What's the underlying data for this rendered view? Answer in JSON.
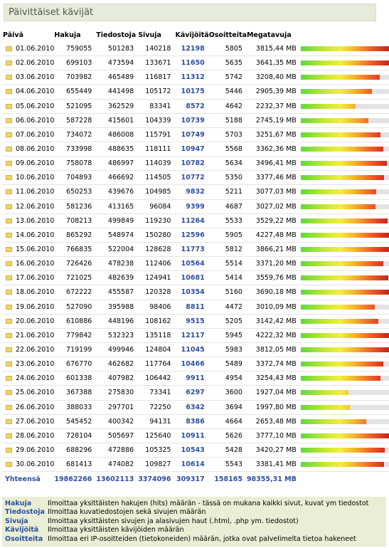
{
  "title": "Päivittäiset kävijät",
  "headers": {
    "date": "Päivä",
    "hits": "Hakuja",
    "files": "Tiedostoja",
    "pages": "Sivuja",
    "visits": "Kävijöitä",
    "ips": "Osoitteita",
    "mb": "Megatavuja"
  },
  "rows": [
    {
      "date": "01.06.2010",
      "hits": "759055",
      "files": "501283",
      "pages": "140218",
      "visits": "12198",
      "ips": "5805",
      "mb": "3815,44 MB",
      "mbv": 3815.44
    },
    {
      "date": "02.06.2010",
      "hits": "699103",
      "files": "473594",
      "pages": "133671",
      "visits": "11650",
      "ips": "5635",
      "mb": "3641,35 MB",
      "mbv": 3641.35
    },
    {
      "date": "03.06.2010",
      "hits": "703982",
      "files": "465489",
      "pages": "116817",
      "visits": "11312",
      "ips": "5742",
      "mb": "3208,40 MB",
      "mbv": 3208.4
    },
    {
      "date": "04.06.2010",
      "hits": "655449",
      "files": "441498",
      "pages": "105172",
      "visits": "10175",
      "ips": "5446",
      "mb": "2905,39 MB",
      "mbv": 2905.39
    },
    {
      "date": "05.06.2010",
      "hits": "521095",
      "files": "362529",
      "pages": "83341",
      "visits": "8572",
      "ips": "4642",
      "mb": "2232,37 MB",
      "mbv": 2232.37
    },
    {
      "date": "06.06.2010",
      "hits": "587228",
      "files": "415601",
      "pages": "104339",
      "visits": "10739",
      "ips": "5188",
      "mb": "2745,19 MB",
      "mbv": 2745.19
    },
    {
      "date": "07.06.2010",
      "hits": "734072",
      "files": "486008",
      "pages": "115791",
      "visits": "10749",
      "ips": "5703",
      "mb": "3251,67 MB",
      "mbv": 3251.67
    },
    {
      "date": "08.06.2010",
      "hits": "733998",
      "files": "488635",
      "pages": "118111",
      "visits": "10947",
      "ips": "5568",
      "mb": "3362,36 MB",
      "mbv": 3362.36
    },
    {
      "date": "09.06.2010",
      "hits": "758078",
      "files": "486997",
      "pages": "114039",
      "visits": "10782",
      "ips": "5634",
      "mb": "3496,41 MB",
      "mbv": 3496.41
    },
    {
      "date": "10.06.2010",
      "hits": "704893",
      "files": "466692",
      "pages": "114505",
      "visits": "10772",
      "ips": "5350",
      "mb": "3377,46 MB",
      "mbv": 3377.46
    },
    {
      "date": "11.06.2010",
      "hits": "650253",
      "files": "439676",
      "pages": "104985",
      "visits": "9832",
      "ips": "5211",
      "mb": "3077,03 MB",
      "mbv": 3077.03
    },
    {
      "date": "12.06.2010",
      "hits": "581236",
      "files": "413165",
      "pages": "96084",
      "visits": "9399",
      "ips": "4687",
      "mb": "3027,02 MB",
      "mbv": 3027.02
    },
    {
      "date": "13.06.2010",
      "hits": "708213",
      "files": "499849",
      "pages": "119230",
      "visits": "11264",
      "ips": "5533",
      "mb": "3529,22 MB",
      "mbv": 3529.22
    },
    {
      "date": "14.06.2010",
      "hits": "865292",
      "files": "548974",
      "pages": "150280",
      "visits": "12596",
      "ips": "5905",
      "mb": "4227,48 MB",
      "mbv": 4227.48
    },
    {
      "date": "15.06.2010",
      "hits": "766835",
      "files": "522004",
      "pages": "128628",
      "visits": "11773",
      "ips": "5812",
      "mb": "3866,21 MB",
      "mbv": 3866.21
    },
    {
      "date": "16.06.2010",
      "hits": "726426",
      "files": "478238",
      "pages": "112406",
      "visits": "10564",
      "ips": "5514",
      "mb": "3371,20 MB",
      "mbv": 3371.2
    },
    {
      "date": "17.06.2010",
      "hits": "721025",
      "files": "482639",
      "pages": "124941",
      "visits": "10681",
      "ips": "5414",
      "mb": "3559,76 MB",
      "mbv": 3559.76
    },
    {
      "date": "18.06.2010",
      "hits": "672222",
      "files": "455587",
      "pages": "120328",
      "visits": "10354",
      "ips": "5160",
      "mb": "3690,18 MB",
      "mbv": 3690.18
    },
    {
      "date": "19.06.2010",
      "hits": "527090",
      "files": "395988",
      "pages": "98406",
      "visits": "8811",
      "ips": "4472",
      "mb": "3010,09 MB",
      "mbv": 3010.09
    },
    {
      "date": "20.06.2010",
      "hits": "610886",
      "files": "448196",
      "pages": "108162",
      "visits": "9515",
      "ips": "5205",
      "mb": "3142,42 MB",
      "mbv": 3142.42
    },
    {
      "date": "21.06.2010",
      "hits": "779842",
      "files": "532323",
      "pages": "135118",
      "visits": "12117",
      "ips": "5945",
      "mb": "4222,32 MB",
      "mbv": 4222.32
    },
    {
      "date": "22.06.2010",
      "hits": "719199",
      "files": "499946",
      "pages": "124804",
      "visits": "11045",
      "ips": "5983",
      "mb": "3812,05 MB",
      "mbv": 3812.05
    },
    {
      "date": "23.06.2010",
      "hits": "676770",
      "files": "462682",
      "pages": "117764",
      "visits": "10466",
      "ips": "5489",
      "mb": "3372,74 MB",
      "mbv": 3372.74
    },
    {
      "date": "24.06.2010",
      "hits": "601338",
      "files": "407982",
      "pages": "106442",
      "visits": "9911",
      "ips": "4954",
      "mb": "3254,43 MB",
      "mbv": 3254.43
    },
    {
      "date": "25.06.2010",
      "hits": "367388",
      "files": "275830",
      "pages": "73341",
      "visits": "6297",
      "ips": "3600",
      "mb": "1927,04 MB",
      "mbv": 1927.04
    },
    {
      "date": "26.06.2010",
      "hits": "388033",
      "files": "297701",
      "pages": "72250",
      "visits": "6342",
      "ips": "3694",
      "mb": "1997,80 MB",
      "mbv": 1997.8
    },
    {
      "date": "27.06.2010",
      "hits": "545452",
      "files": "400342",
      "pages": "94131",
      "visits": "8386",
      "ips": "4664",
      "mb": "2653,48 MB",
      "mbv": 2653.48
    },
    {
      "date": "28.06.2010",
      "hits": "728104",
      "files": "505697",
      "pages": "125640",
      "visits": "10911",
      "ips": "5626",
      "mb": "3777,10 MB",
      "mbv": 3777.1
    },
    {
      "date": "29.06.2010",
      "hits": "688296",
      "files": "472886",
      "pages": "105325",
      "visits": "10543",
      "ips": "5428",
      "mb": "3420,27 MB",
      "mbv": 3420.27
    },
    {
      "date": "30.06.2010",
      "hits": "681413",
      "files": "474082",
      "pages": "109827",
      "visits": "10614",
      "ips": "5543",
      "mb": "3381,41 MB",
      "mbv": 3381.41
    }
  ],
  "bar_max_mb": 4227.48,
  "totals": {
    "label": "Yhteensä",
    "hits": "19862266",
    "files": "13602113",
    "pages": "3374096",
    "visits": "309317",
    "ips": "158165",
    "mb": "98355,31 MB"
  },
  "legend": [
    {
      "term": "Hakuja",
      "desc": "Ilmoittaa yksittäisten hakujen (hits) määrän - tässä on mukana kaikki sivut, kuvat ym tiedostot"
    },
    {
      "term": "Tiedostoja",
      "desc": "Ilmoittaa kuvatiedostojen sekä sivujen määrän"
    },
    {
      "term": "Sivuja",
      "desc": "Ilmoittaa yksittäisten sivujen ja alasivujen haut (.html, .php ym. tiedostot)"
    },
    {
      "term": "Kävijöitä",
      "desc": "Ilmoittaa yksittäisten kävijöiden määrän"
    },
    {
      "term": "Osoitteita",
      "desc": "Ilmoittaa eri IP-osoitteiden (tietokoneiden) määrän, jotka ovat palvelimelta tietoa hakeneet"
    }
  ],
  "colors": {
    "accent": "#2c4f9e",
    "title_bg": "#e6ecd9",
    "legend_bg": "#e9eed4"
  }
}
